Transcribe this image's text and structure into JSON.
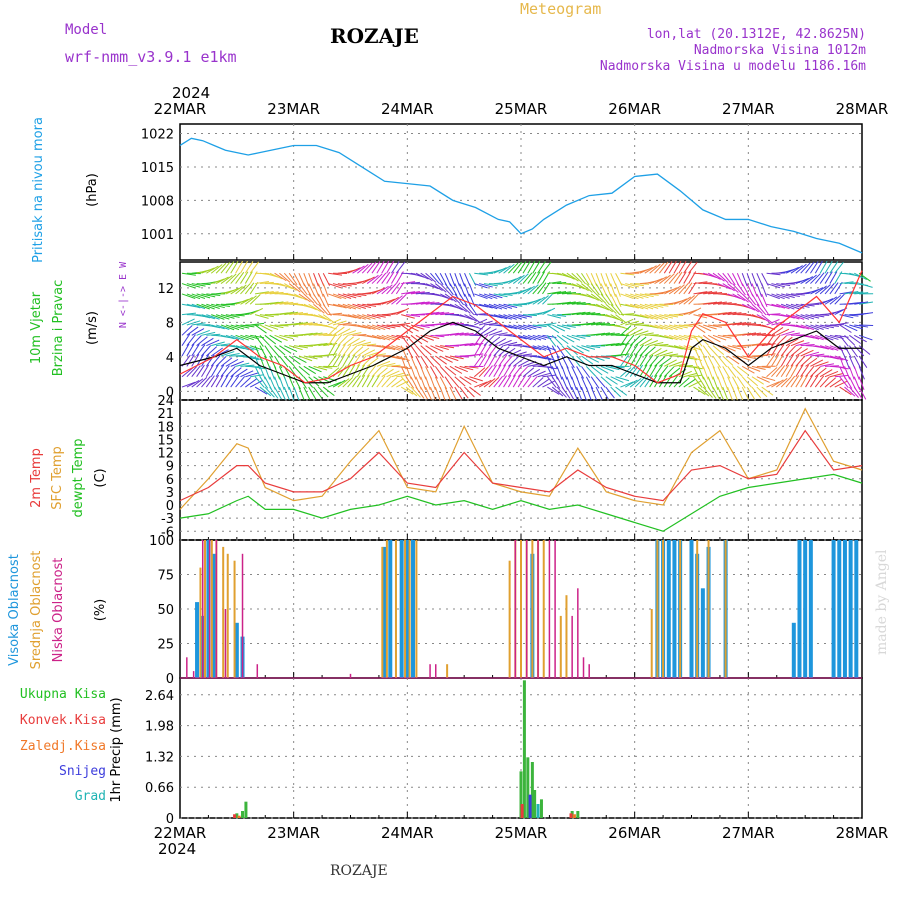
{
  "header": {
    "model_label": "Model",
    "model_name": "wrf-nmm_v3.9.1  e1km",
    "station": "ROZAJE",
    "meteogram": "Meteogram",
    "lonlat": "lon,lat (20.1312E, 42.8625N)",
    "elevation": "Nadmorska Visina 1012m",
    "model_elevation": "Nadmorska Visina u modelu 1186.16m",
    "footer_station": "ROZAJE",
    "credit": "made by Angel"
  },
  "time_axis": {
    "year_top": "2024",
    "year_bottom": "2024",
    "labels": [
      "22MAR",
      "23MAR",
      "24MAR",
      "25MAR",
      "26MAR",
      "27MAR",
      "28MAR"
    ]
  },
  "colors": {
    "pressure": "#1ea0e6",
    "wind_speed": "#000000",
    "gust": "#ff3333",
    "t2m": "#e83c3c",
    "sfc": "#e0a030",
    "dewpt": "#22c022",
    "high_cloud": "#1e96dc",
    "mid_cloud": "#e0a030",
    "low_cloud": "#cc2288",
    "precip_total": "#3cb43c",
    "precip_conv": "#e83c3c",
    "snow": "#3c3cdc",
    "grad": "#20b4b4"
  },
  "chart_data": [
    {
      "type": "line",
      "panel": "pressure",
      "ylabel": [
        "Pritisak na nivou mora",
        "(hPa)"
      ],
      "yticks": [
        "1022",
        "1015",
        "1008",
        "1001"
      ],
      "ylim": [
        995.5,
        1024
      ],
      "x_days": [
        0,
        0.1,
        0.2,
        0.3,
        0.4,
        0.5,
        0.6,
        0.7,
        0.8,
        1,
        1.2,
        1.4,
        1.6,
        1.8,
        2,
        2.2,
        2.4,
        2.6,
        2.8,
        2.9,
        3,
        3.1,
        3.2,
        3.4,
        3.6,
        3.8,
        4,
        4.2,
        4.4,
        4.6,
        4.8,
        5,
        5.2,
        5.4,
        5.6,
        5.8,
        6
      ],
      "series": [
        {
          "values": [
            1019.5,
            1021,
            1020.5,
            1019.5,
            1018.5,
            1018,
            1017.5,
            1018,
            1018.5,
            1019.5,
            1019.5,
            1018,
            1015,
            1012,
            1011.5,
            1011,
            1008,
            1006.5,
            1004,
            1003.5,
            1001,
            1002,
            1004,
            1007,
            1009,
            1009.5,
            1013,
            1013.5,
            1010,
            1006,
            1004,
            1004,
            1002.5,
            1001.5,
            1000,
            999,
            997
          ]
        }
      ]
    },
    {
      "type": "line",
      "panel": "wind",
      "ylabel": [
        "10m Vjetar",
        "Brzina i Pravac",
        "(m/s)"
      ],
      "compass": "N <-|-> E W",
      "yticks": [
        "12",
        "8",
        "4",
        "0"
      ],
      "ylim": [
        -1,
        15
      ],
      "x_days": [
        0,
        0.3,
        0.5,
        0.7,
        0.9,
        1.1,
        1.3,
        1.5,
        1.7,
        2,
        2.2,
        2.4,
        2.6,
        2.8,
        3,
        3.2,
        3.4,
        3.6,
        3.8,
        4,
        4.2,
        4.4,
        4.5,
        4.6,
        4.8,
        5,
        5.2,
        5.4,
        5.6,
        5.8,
        6
      ],
      "series": [
        {
          "values": [
            3,
            4,
            5,
            3,
            2,
            1,
            1,
            2,
            3,
            5,
            7,
            8,
            7,
            5,
            4,
            3,
            4,
            3,
            3,
            2,
            1,
            1,
            5,
            6,
            5,
            3,
            5,
            6,
            7,
            5,
            5
          ]
        },
        {
          "values": [
            2,
            4,
            6,
            4,
            3,
            1,
            1.5,
            3,
            4,
            7,
            9,
            11,
            10,
            8,
            6,
            4,
            5,
            4,
            4,
            3,
            1,
            2,
            7,
            9,
            8,
            4,
            7,
            9,
            11,
            8,
            14
          ]
        }
      ]
    },
    {
      "type": "line",
      "panel": "temperature",
      "ylabel": [
        "2m Temp",
        "SFC Temp",
        "dewpt Temp",
        "(C)"
      ],
      "yticks": [
        "24",
        "21",
        "18",
        "15",
        "12",
        "9",
        "6",
        "3",
        "0",
        "-3",
        "-6"
      ],
      "ylim": [
        -8,
        24
      ],
      "x_days": [
        0,
        0.25,
        0.5,
        0.6,
        0.75,
        1,
        1.25,
        1.5,
        1.75,
        2,
        2.25,
        2.5,
        2.75,
        3,
        3.25,
        3.5,
        3.75,
        4,
        4.25,
        4.5,
        4.75,
        5,
        5.25,
        5.5,
        5.75,
        6
      ],
      "series": [
        {
          "values": [
            1,
            4,
            9,
            9,
            5,
            3,
            3,
            6,
            12,
            5,
            4,
            12,
            5,
            4,
            3,
            8,
            4,
            2,
            1,
            8,
            9,
            6,
            7,
            17,
            8,
            9
          ]
        },
        {
          "values": [
            -1,
            6,
            14,
            13,
            4,
            1,
            2,
            10,
            17,
            4,
            3,
            18,
            5,
            3,
            2,
            13,
            3,
            1,
            0,
            12,
            17,
            6,
            8,
            22,
            10,
            8
          ]
        },
        {
          "values": [
            -3,
            -2,
            1,
            2,
            -1,
            -1,
            -3,
            -1,
            0,
            2,
            0,
            1,
            -1,
            1,
            -1,
            0,
            -2,
            -4,
            -6,
            -2,
            2,
            4,
            5,
            6,
            7,
            5
          ]
        }
      ]
    },
    {
      "type": "bar",
      "panel": "clouds",
      "ylabel": [
        "Visoka Oblacnost",
        "Srednja Oblacnost",
        "Niska Oblacnost",
        "(%)"
      ],
      "yticks": [
        "100",
        "75",
        "50",
        "25",
        "0"
      ],
      "ylim": [
        0,
        100
      ],
      "series": [
        {
          "x": [
            0.15,
            0.2,
            0.25,
            0.3,
            0.5,
            0.55,
            1.8,
            1.85,
            1.95,
            2.0,
            2.05,
            3.1,
            4.2,
            4.25,
            4.3,
            4.35,
            4.4,
            4.5,
            4.55,
            4.6,
            4.65,
            4.8,
            5.4,
            5.45,
            5.5,
            5.55,
            5.75,
            5.8,
            5.85,
            5.9,
            5.95
          ],
          "values": [
            55,
            45,
            100,
            90,
            40,
            30,
            95,
            100,
            100,
            100,
            100,
            90,
            100,
            100,
            100,
            100,
            100,
            100,
            90,
            65,
            95,
            100,
            40,
            100,
            100,
            100,
            100,
            100,
            100,
            100,
            100
          ]
        },
        {
          "x": [
            0.18,
            0.22,
            0.28,
            0.32,
            0.38,
            0.42,
            0.48,
            1.78,
            1.82,
            1.9,
            1.98,
            2.02,
            2.08,
            2.35,
            2.9,
            2.95,
            3.0,
            3.05,
            3.1,
            3.15,
            3.2,
            3.35,
            3.4,
            4.15,
            4.2,
            4.25,
            4.4,
            4.55,
            4.65,
            4.8
          ],
          "values": [
            80,
            100,
            100,
            100,
            95,
            90,
            85,
            95,
            100,
            100,
            100,
            100,
            100,
            10,
            85,
            100,
            100,
            100,
            100,
            100,
            100,
            45,
            60,
            50,
            100,
            100,
            100,
            100,
            100,
            100
          ]
        },
        {
          "x": [
            0.06,
            0.12,
            0.2,
            0.26,
            0.32,
            0.4,
            0.55,
            0.68,
            1.5,
            2.2,
            2.25,
            2.95,
            3.05,
            3.15,
            3.25,
            3.3,
            3.45,
            3.5,
            3.55,
            3.6
          ],
          "values": [
            15,
            5,
            100,
            100,
            100,
            50,
            90,
            10,
            3,
            10,
            10,
            100,
            100,
            100,
            100,
            100,
            45,
            65,
            15,
            10
          ]
        }
      ]
    },
    {
      "type": "bar",
      "panel": "precip",
      "ylabel": [
        "1hr Precip (mm)"
      ],
      "legend": [
        "Ukupna Kisa",
        "Konvek.Kisa",
        "Zaledj.Kisa",
        "Snijeg",
        "Grad"
      ],
      "yticks": [
        "2.64",
        "1.98",
        "1.32",
        "0.66",
        "0"
      ],
      "ylim": [
        0,
        3.0
      ],
      "series": [
        {
          "x": [
            0.5,
            0.55,
            0.58,
            3.0,
            3.03,
            3.06,
            3.1,
            3.12,
            3.18,
            3.45,
            3.5
          ],
          "values": [
            0.1,
            0.15,
            0.35,
            1.0,
            2.95,
            1.3,
            1.2,
            0.6,
            0.4,
            0.15,
            0.15
          ]
        },
        {
          "x": [
            0.48,
            3.01,
            3.44
          ],
          "values": [
            0.08,
            0.3,
            0.1
          ]
        },
        {
          "x": [
            0.52,
            3.47
          ],
          "values": [
            0.05,
            0.08
          ]
        },
        {
          "x": [
            3.08
          ],
          "values": [
            0.5
          ]
        },
        {
          "x": [
            3.15
          ],
          "values": [
            0.3
          ]
        }
      ]
    }
  ]
}
